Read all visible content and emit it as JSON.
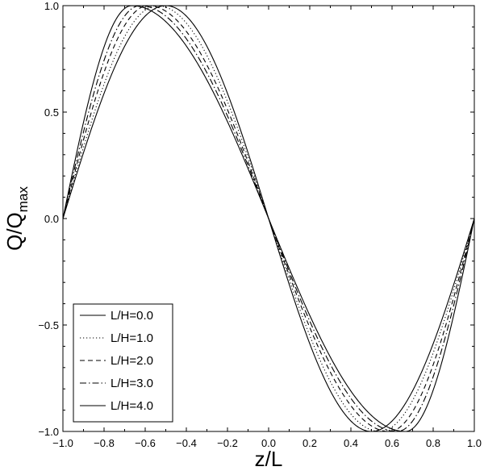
{
  "chart_data": {
    "type": "line",
    "xlabel": "z/L",
    "ylabel": {
      "main": "Q/Q",
      "sub": "max"
    },
    "xlim": [
      -1.0,
      1.0
    ],
    "ylim": [
      -1.0,
      1.0
    ],
    "xticks": [
      "-1.0",
      "-0.8",
      "-0.6",
      "-0.4",
      "-0.2",
      "0.0",
      "0.2",
      "0.4",
      "0.6",
      "0.8",
      "1.0"
    ],
    "yticks": [
      "-1.0",
      "-0.5",
      "0.0",
      "0.5",
      "1.0"
    ],
    "grid": false,
    "legend_position": "bottom-left",
    "series": [
      {
        "name": "L/H=0.0",
        "style": "solid",
        "peak_z": -0.5
      },
      {
        "name": "L/H=1.0",
        "style": "dotted",
        "peak_z": -0.54
      },
      {
        "name": "L/H=2.0",
        "style": "dashed",
        "peak_z": -0.585
      },
      {
        "name": "L/H=3.0",
        "style": "dashdot",
        "peak_z": -0.625
      },
      {
        "name": "L/H=4.0",
        "style": "solid",
        "peak_z": -0.665
      }
    ]
  }
}
